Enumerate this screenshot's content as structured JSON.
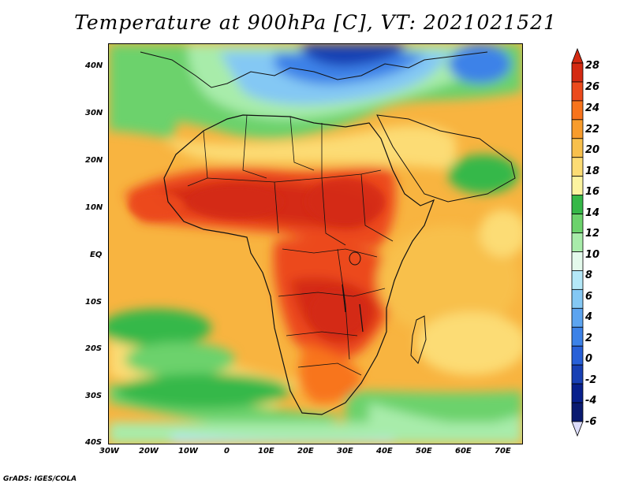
{
  "title": "Temperature at 900hPa [C], VT: 2021021521",
  "footer": "GrADS: IGES/COLA",
  "map": {
    "region": "Africa",
    "lat_labels": [
      "40N",
      "30N",
      "20N",
      "10N",
      "EQ",
      "10S",
      "20S",
      "30S",
      "40S"
    ],
    "lon_labels": [
      "30W",
      "20W",
      "10W",
      "0",
      "10E",
      "20E",
      "30E",
      "40E",
      "50E",
      "60E",
      "70E"
    ]
  },
  "colorbar": {
    "labels": [
      "28",
      "26",
      "24",
      "22",
      "20",
      "18",
      "16",
      "14",
      "12",
      "10",
      "8",
      "6",
      "4",
      "2",
      "0",
      "-2",
      "-4",
      "-6"
    ],
    "colors": [
      "#d42a12",
      "#ec4a1c",
      "#f8741c",
      "#f89c2c",
      "#f8c04c",
      "#fcdc74",
      "#fcf4a0",
      "#36b848",
      "#6cd26c",
      "#a8ecaa",
      "#e4faec",
      "#b4e8f8",
      "#84c8f4",
      "#5ca4f0",
      "#3c82e8",
      "#2860d8",
      "#1840b4",
      "#08208c"
    ]
  }
}
